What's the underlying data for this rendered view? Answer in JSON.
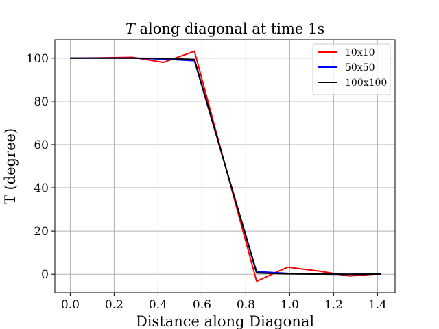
{
  "chart_data": {
    "type": "line",
    "title_symbol": "T",
    "title_rest": " along diagonal at time 1s",
    "xlabel": "Distance along Diagonal",
    "ylabel": "T (degree)",
    "xlim": [
      -0.07,
      1.48
    ],
    "ylim": [
      -8.5,
      108.5
    ],
    "xticks": [
      0.0,
      0.2,
      0.4,
      0.6,
      0.8,
      1.0,
      1.2,
      1.4
    ],
    "xtick_labels": [
      "0.0",
      "0.2",
      "0.4",
      "0.6",
      "0.8",
      "1.0",
      "1.2",
      "1.4"
    ],
    "yticks": [
      0,
      20,
      40,
      60,
      80,
      100
    ],
    "ytick_labels": [
      "0",
      "20",
      "40",
      "60",
      "80",
      "100"
    ],
    "grid": true,
    "legend_position": "top-right",
    "series": [
      {
        "name": "10x10",
        "color": "#ff0000",
        "x": [
          0.0,
          0.141,
          0.283,
          0.424,
          0.566,
          0.707,
          0.849,
          0.99,
          1.131,
          1.273,
          1.414
        ],
        "y": [
          100,
          100.2,
          100.4,
          98.0,
          103.2,
          50.0,
          -3.2,
          3.3,
          1.5,
          -0.8,
          0.3
        ]
      },
      {
        "name": "50x50",
        "color": "#0000ff",
        "x": [
          0.0,
          0.141,
          0.283,
          0.424,
          0.566,
          0.707,
          0.849,
          0.99,
          1.131,
          1.273,
          1.414
        ],
        "y": [
          100,
          100,
          100,
          99.6,
          98.8,
          50.0,
          1.2,
          0.4,
          0.1,
          0.0,
          0.1
        ]
      },
      {
        "name": "100x100",
        "color": "#000000",
        "x": [
          0.0,
          0.141,
          0.283,
          0.424,
          0.566,
          0.707,
          0.849,
          0.99,
          1.131,
          1.273,
          1.414
        ],
        "y": [
          100,
          100,
          100,
          99.9,
          99.4,
          50.0,
          0.6,
          0.2,
          0.05,
          0.0,
          0.05
        ]
      }
    ]
  }
}
